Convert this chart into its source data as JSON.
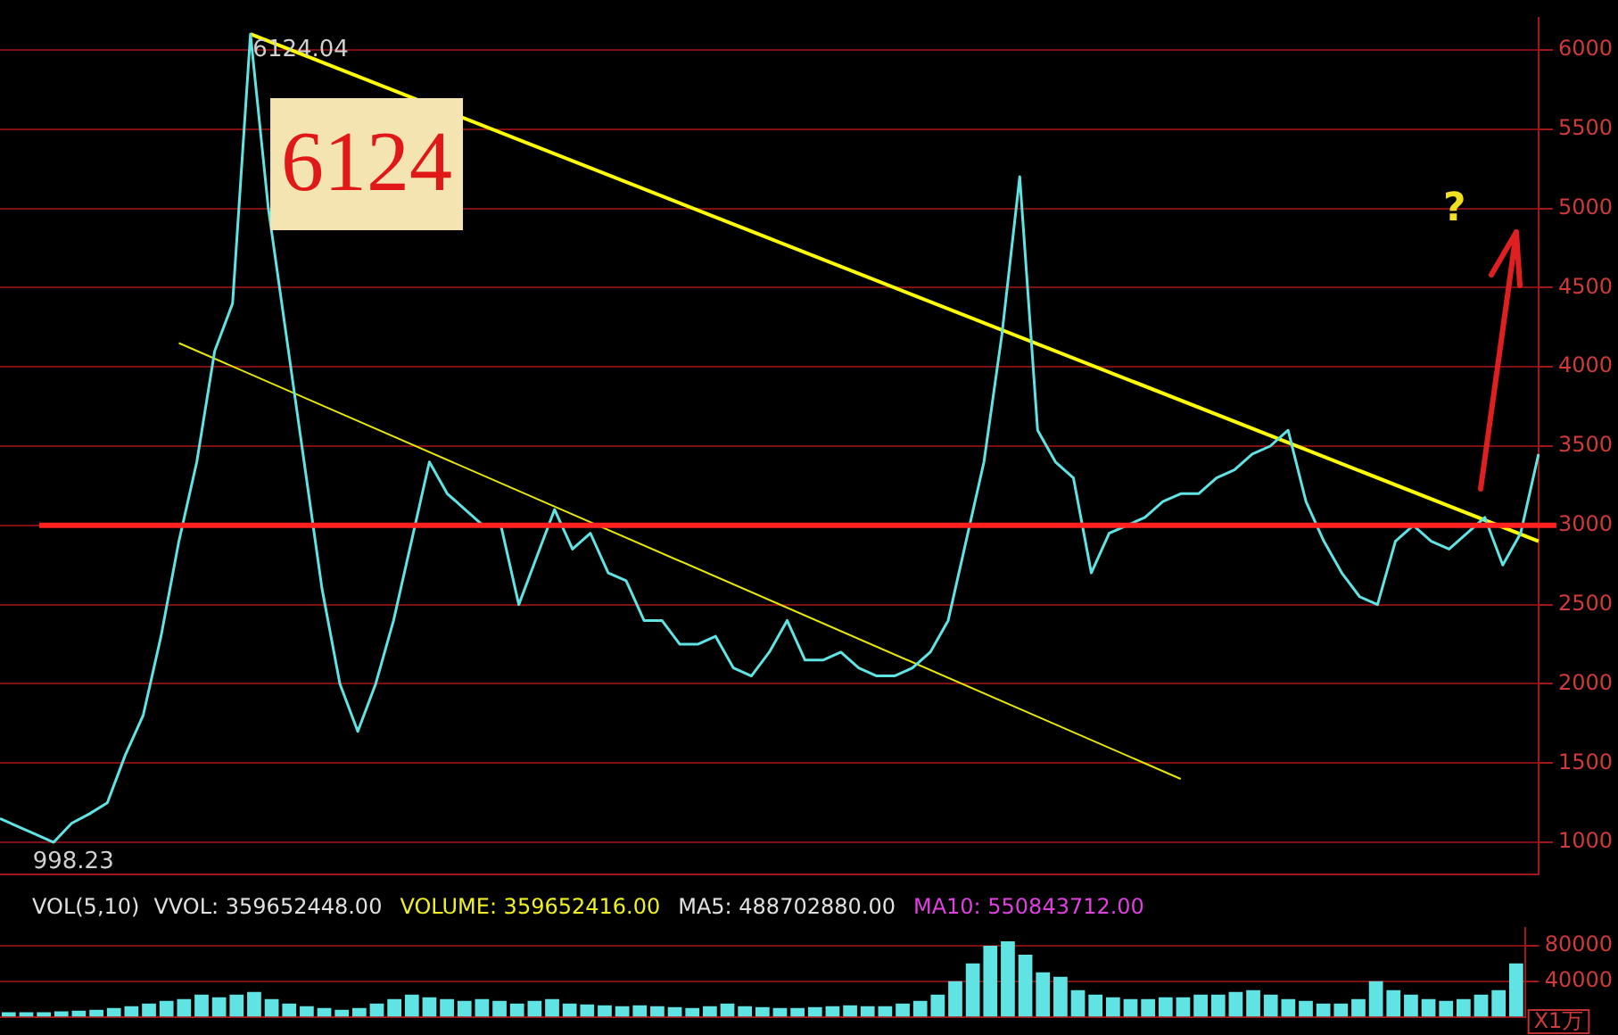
{
  "chart_data": [
    {
      "type": "line",
      "categories": [
        null,
        null,
        null,
        null,
        null,
        null,
        null,
        null,
        null,
        null,
        null,
        null,
        null,
        null,
        null,
        null,
        null,
        null,
        null,
        null,
        null,
        null,
        null,
        null,
        null,
        null,
        null,
        null,
        null,
        null,
        null,
        null,
        null,
        null,
        null,
        null,
        null,
        null,
        null,
        null,
        null,
        null,
        null,
        null,
        null,
        null,
        null,
        null,
        null,
        null,
        null,
        null,
        null,
        null,
        null,
        null,
        null,
        null,
        null,
        null,
        null,
        null,
        null,
        null,
        null,
        null,
        null,
        null,
        null,
        null,
        null,
        null,
        null,
        null,
        null,
        null,
        null,
        null,
        null,
        null,
        null,
        null,
        null,
        null,
        null,
        null,
        null
      ],
      "series": [
        {
          "color": "#5fe3e3",
          "values": [
            1150,
            1100,
            1050,
            1000,
            1120,
            1180,
            1250,
            1550,
            1800,
            2300,
            2900,
            3400,
            4100,
            4400,
            6100,
            5000,
            4200,
            3400,
            2600,
            2000,
            1700,
            2000,
            2400,
            2900,
            3400,
            3200,
            3100,
            3000,
            3000,
            2500,
            2800,
            3100,
            2850,
            2950,
            2700,
            2650,
            2400,
            2400,
            2250,
            2250,
            2300,
            2100,
            2050,
            2200,
            2400,
            2150,
            2150,
            2200,
            2100,
            2050,
            2050,
            2100,
            2200,
            2400,
            2900,
            3400,
            4200,
            5200,
            3600,
            3400,
            3300,
            2700,
            2950,
            3000,
            3050,
            3150,
            3200,
            3200,
            3300,
            3350,
            3450,
            3500,
            3600,
            3150,
            2900,
            2700,
            2550,
            2500,
            2900,
            3000,
            2900,
            2850,
            2950,
            3050,
            2750,
            2950,
            3450
          ]
        },
        {
          "type": "line",
          "color": "#ffff00",
          "values": [
            null,
            null,
            null,
            null,
            null,
            null,
            null,
            null,
            null,
            null,
            null,
            null,
            null,
            null,
            6100,
            null,
            null,
            null,
            null,
            null,
            null,
            null,
            null,
            null,
            null,
            null,
            null,
            null,
            null,
            null,
            null,
            null,
            null,
            null,
            null,
            null,
            null,
            null,
            null,
            null,
            null,
            null,
            null,
            null,
            null,
            null,
            null,
            null,
            null,
            null,
            null,
            null,
            null,
            null,
            null,
            null,
            null,
            null,
            null,
            null,
            null,
            null,
            null,
            null,
            null,
            null,
            null,
            null,
            null,
            null,
            null,
            null,
            null,
            null,
            null,
            null,
            null,
            null,
            null,
            null,
            null,
            null,
            null,
            null,
            null,
            null,
            2900
          ]
        },
        {
          "type": "line",
          "color": "#e8e800",
          "values": [
            null,
            null,
            null,
            null,
            null,
            null,
            null,
            null,
            null,
            null,
            4150,
            null,
            null,
            null,
            null,
            null,
            null,
            null,
            null,
            null,
            null,
            null,
            null,
            null,
            null,
            null,
            null,
            null,
            null,
            null,
            null,
            null,
            null,
            null,
            null,
            null,
            null,
            null,
            null,
            null,
            null,
            null,
            null,
            null,
            null,
            null,
            null,
            null,
            null,
            null,
            null,
            null,
            null,
            null,
            null,
            null,
            null,
            null,
            null,
            null,
            null,
            null,
            null,
            null,
            null,
            null,
            1400,
            null,
            null,
            null,
            null,
            null,
            null,
            null,
            null,
            null,
            null,
            null,
            null,
            null,
            null,
            null,
            null,
            null,
            null,
            null,
            null
          ]
        }
      ],
      "ylim": [
        800,
        6200
      ],
      "yticks": [
        1000,
        1500,
        2000,
        2500,
        3000,
        3500,
        4000,
        4500,
        5000,
        5500,
        6000
      ],
      "grid": "y",
      "legend": false,
      "tick_labels": "y",
      "ref_lines": [
        {
          "axis": "y",
          "value": 3000,
          "color": "#ff2020"
        }
      ],
      "annotations": [
        "6124.04",
        "6124",
        "998.23",
        "?"
      ]
    },
    {
      "type": "bar",
      "title": "VOL(5,10)",
      "ylabel": "X1万",
      "categories": [
        null,
        null,
        null,
        null,
        null,
        null,
        null,
        null,
        null,
        null,
        null,
        null,
        null,
        null,
        null,
        null,
        null,
        null,
        null,
        null,
        null,
        null,
        null,
        null,
        null,
        null,
        null,
        null,
        null,
        null,
        null,
        null,
        null,
        null,
        null,
        null,
        null,
        null,
        null,
        null,
        null,
        null,
        null,
        null,
        null,
        null,
        null,
        null,
        null,
        null,
        null,
        null,
        null,
        null,
        null,
        null,
        null,
        null,
        null,
        null,
        null,
        null,
        null,
        null,
        null,
        null,
        null,
        null,
        null,
        null,
        null,
        null,
        null,
        null,
        null,
        null,
        null,
        null,
        null,
        null,
        null,
        null,
        null,
        null,
        null,
        null,
        null
      ],
      "values": [
        5000,
        5000,
        5000,
        6000,
        7000,
        8000,
        10000,
        12000,
        15000,
        18000,
        20000,
        25000,
        22000,
        25000,
        28000,
        20000,
        15000,
        12000,
        10000,
        8000,
        10000,
        15000,
        20000,
        25000,
        22000,
        20000,
        18000,
        20000,
        18000,
        15000,
        18000,
        20000,
        15000,
        14000,
        13000,
        12000,
        13000,
        12000,
        11000,
        10000,
        12000,
        15000,
        12000,
        11000,
        10000,
        10000,
        11000,
        12000,
        13000,
        12000,
        12000,
        15000,
        18000,
        25000,
        40000,
        60000,
        80000,
        85000,
        70000,
        50000,
        45000,
        30000,
        25000,
        22000,
        20000,
        20000,
        22000,
        22000,
        25000,
        25000,
        28000,
        30000,
        25000,
        20000,
        18000,
        15000,
        15000,
        20000,
        40000,
        30000,
        25000,
        20000,
        18000,
        20000,
        25000,
        30000,
        60000
      ],
      "color": "#5fe3e3",
      "ylim": [
        0,
        100000
      ],
      "yticks": [
        40000,
        80000
      ],
      "grid": "y",
      "legend": false,
      "tick_labels": "y",
      "annotations": [
        "VVOL: 359652448.00",
        "VOLUME: 359652416.00",
        "MA5: 488702880.00",
        "MA10: 550843712.00"
      ]
    }
  ]
}
